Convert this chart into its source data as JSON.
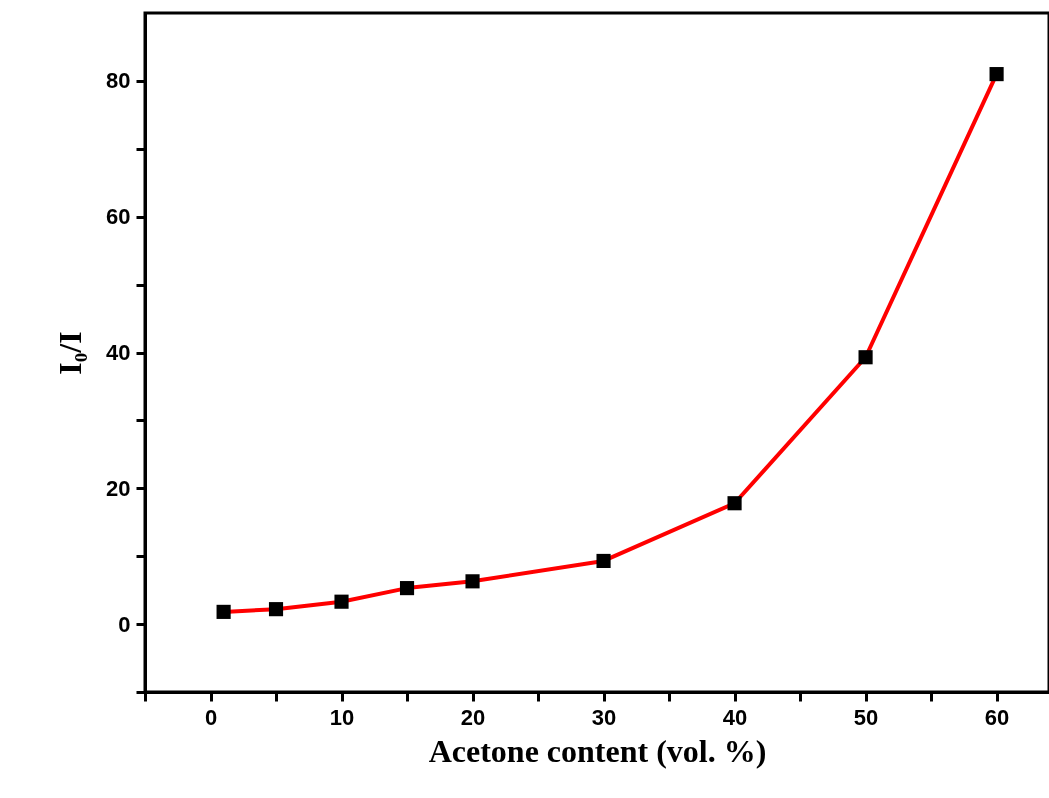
{
  "chart_data": {
    "type": "line",
    "xlabel": "Acetone content (vol. %)",
    "ylabel": "I₀/I",
    "x": [
      1,
      5,
      10,
      15,
      20,
      30,
      40,
      50,
      60
    ],
    "series": [
      {
        "color": "#ff0000",
        "values": [
          1.8,
          2.2,
          3.3,
          5.3,
          6.3,
          9.3,
          17.8,
          39.3,
          81
        ]
      }
    ],
    "marker": "square",
    "line_style": "solid",
    "grid": false,
    "xlim": [
      -5,
      64
    ],
    "xticks": [
      {
        "value": -5,
        "label": null
      },
      0,
      {
        "value": 5,
        "label": null
      },
      10,
      {
        "value": 15,
        "label": null
      },
      20,
      {
        "value": 25,
        "label": null
      },
      30,
      {
        "value": 35,
        "label": null
      },
      40,
      {
        "value": 45,
        "label": null
      },
      50,
      {
        "value": 55,
        "label": null
      },
      60
    ],
    "ylim": [
      -10,
      90
    ],
    "yticks": [
      {
        "value": -10,
        "label": null
      },
      0,
      {
        "value": 10,
        "label": null
      },
      20,
      {
        "value": 30,
        "label": null
      },
      40,
      {
        "value": 50,
        "label": null
      },
      60,
      {
        "value": 70,
        "label": null
      },
      80
    ]
  }
}
